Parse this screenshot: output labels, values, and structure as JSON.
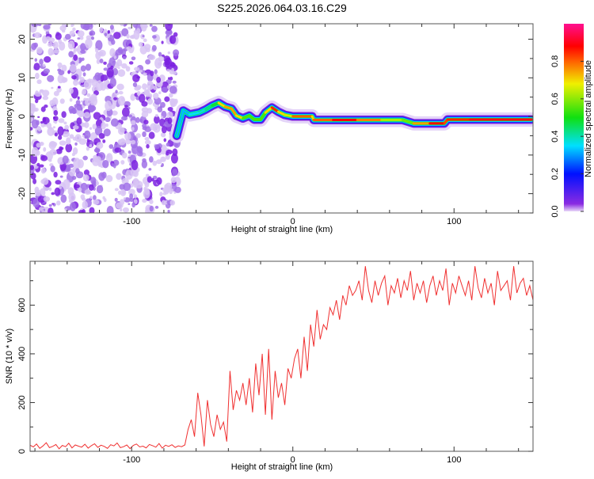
{
  "title": "S225.2026.064.03.16.C29",
  "chart_data": [
    {
      "type": "heatmap",
      "title": "S225.2026.064.03.16.C29",
      "xlabel": "Height of straight line (km)",
      "ylabel": "Frequency (Hz)",
      "xlim": [
        -163,
        149
      ],
      "ylim": [
        -25,
        24
      ],
      "xticks": [
        -100,
        0,
        100
      ],
      "yticks": [
        -20,
        -10,
        0,
        10,
        20
      ],
      "noise_region_x": [
        -163,
        -74
      ],
      "ridge": [
        {
          "x": -72,
          "f": -5,
          "a": 0.35
        },
        {
          "x": -68,
          "f": 1.5,
          "a": 0.3
        },
        {
          "x": -64,
          "f": 0.5,
          "a": 0.35
        },
        {
          "x": -58,
          "f": 1,
          "a": 0.35
        },
        {
          "x": -54,
          "f": 1.8,
          "a": 0.4
        },
        {
          "x": -50,
          "f": 2.8,
          "a": 0.45
        },
        {
          "x": -46,
          "f": 3.5,
          "a": 0.5
        },
        {
          "x": -42,
          "f": 2.5,
          "a": 0.9
        },
        {
          "x": -38,
          "f": 2,
          "a": 0.6
        },
        {
          "x": -35,
          "f": 0.2,
          "a": 0.9
        },
        {
          "x": -31,
          "f": -0.5,
          "a": 0.5
        },
        {
          "x": -27,
          "f": 0.2,
          "a": 0.6
        },
        {
          "x": -24,
          "f": -0.8,
          "a": 0.5
        },
        {
          "x": -20,
          "f": -0.8,
          "a": 0.6
        },
        {
          "x": -17,
          "f": 1,
          "a": 0.5
        },
        {
          "x": -13,
          "f": 2.3,
          "a": 0.9
        },
        {
          "x": -9,
          "f": 1.2,
          "a": 0.8
        },
        {
          "x": -5,
          "f": 0.4,
          "a": 0.6
        },
        {
          "x": 0,
          "f": 0,
          "a": 0.7
        },
        {
          "x": 5,
          "f": 0,
          "a": 0.9
        },
        {
          "x": 12,
          "f": 0,
          "a": 0.7
        },
        {
          "x": 13,
          "f": -0.9,
          "a": 0.7
        },
        {
          "x": 25,
          "f": -0.9,
          "a": 0.9
        },
        {
          "x": 40,
          "f": -0.9,
          "a": 0.85
        },
        {
          "x": 55,
          "f": -0.9,
          "a": 0.7
        },
        {
          "x": 68,
          "f": -0.9,
          "a": 0.55
        },
        {
          "x": 75,
          "f": -1.8,
          "a": 0.6
        },
        {
          "x": 85,
          "f": -1.8,
          "a": 0.9
        },
        {
          "x": 94,
          "f": -1.8,
          "a": 0.85
        },
        {
          "x": 96,
          "f": -0.8,
          "a": 0.8
        },
        {
          "x": 110,
          "f": -0.8,
          "a": 0.9
        },
        {
          "x": 130,
          "f": -0.8,
          "a": 0.9
        },
        {
          "x": 148,
          "f": -0.8,
          "a": 0.9
        }
      ],
      "colorbar": {
        "label": "Normalized spectral amplitude",
        "ticks": [
          "0.0",
          "0.2",
          "0.4",
          "0.6",
          "0.8"
        ],
        "tick_values": [
          0,
          0.2,
          0.4,
          0.6,
          0.8
        ],
        "range": [
          0,
          1
        ]
      }
    },
    {
      "type": "line",
      "xlabel": "Height of straight line (km)",
      "ylabel": "SNR (10 * v/v)",
      "xlim": [
        -163,
        149
      ],
      "ylim": [
        0,
        780
      ],
      "xticks": [
        -100,
        0,
        100
      ],
      "yticks": [
        0,
        200,
        400,
        600
      ],
      "series": [
        {
          "name": "SNR",
          "color": "#f03030",
          "x_start": -163,
          "x_step": 2,
          "values": [
            25,
            18,
            30,
            12,
            22,
            35,
            15,
            20,
            28,
            10,
            24,
            19,
            33,
            14,
            26,
            21,
            17,
            29,
            13,
            23,
            31,
            16,
            25,
            20,
            12,
            27,
            22,
            34,
            15,
            19,
            26,
            11,
            24,
            30,
            18,
            21,
            14,
            28,
            23,
            17,
            32,
            13,
            25,
            20,
            27,
            16,
            22,
            19,
            26,
            90,
            130,
            60,
            240,
            150,
            20,
            210,
            110,
            60,
            150,
            90,
            120,
            40,
            330,
            170,
            250,
            210,
            280,
            190,
            300,
            160,
            360,
            230,
            400,
            150,
            420,
            130,
            330,
            220,
            280,
            190,
            340,
            300,
            380,
            420,
            300,
            470,
            330,
            520,
            430,
            580,
            460,
            520,
            500,
            590,
            560,
            620,
            540,
            640,
            600,
            680,
            640,
            660,
            700,
            620,
            760,
            660,
            610,
            700,
            640,
            690,
            720,
            600,
            680,
            650,
            710,
            630,
            700,
            660,
            740,
            620,
            690,
            650,
            700,
            610,
            680,
            720,
            640,
            700,
            660,
            750,
            600,
            690,
            650,
            720,
            680,
            640,
            700,
            620,
            760,
            670,
            630,
            710,
            650,
            690,
            600,
            740,
            660,
            680,
            700,
            620,
            760,
            650,
            690,
            710,
            640,
            680,
            620
          ]
        }
      ]
    }
  ]
}
